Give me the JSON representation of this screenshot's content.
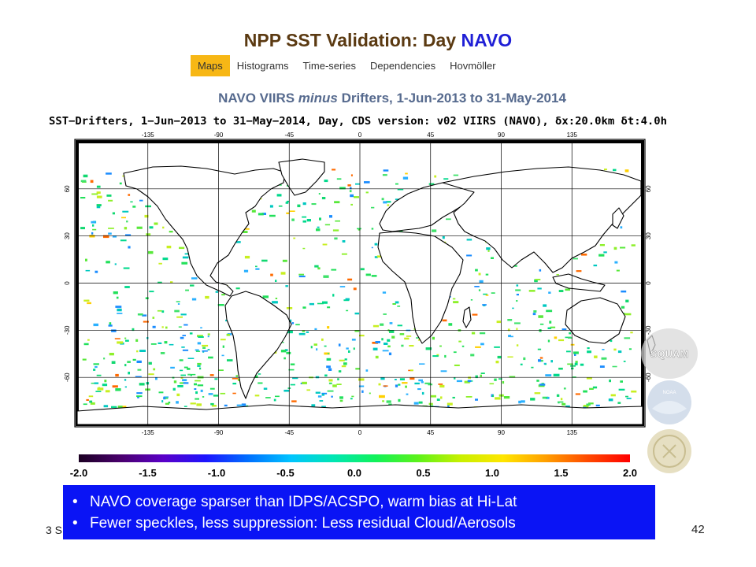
{
  "slide": {
    "title_prefix": "NPP SST Validation: Day ",
    "title_highlight": "NAVO",
    "tabs": [
      {
        "label": "Maps",
        "active": true
      },
      {
        "label": "Histograms",
        "active": false
      },
      {
        "label": "Time-series",
        "active": false
      },
      {
        "label": "Dependencies",
        "active": false
      },
      {
        "label": "Hovmöller",
        "active": false
      }
    ],
    "subtitle_part1": "NAVO VIIRS ",
    "subtitle_italic": "minus",
    "subtitle_part2": " Drifters, 1-Jun-2013 to 31-May-2014",
    "map_header": "SST−Drifters, 1−Jun−2013 to 31−May−2014, Day, CDS version: v02 VIIRS (NAVO), δx:20.0km δt:4.0h",
    "lon_ticks": [
      "-135",
      "-90",
      "-45",
      "0",
      "45",
      "90",
      "135"
    ],
    "lat_ticks": [
      "60",
      "30",
      "0",
      "-30",
      "-60"
    ],
    "colorbar": {
      "ticks": [
        "-2.0",
        "-1.5",
        "-1.0",
        "-0.5",
        "0.0",
        "0.5",
        "1.0",
        "1.5",
        "2.0"
      ]
    },
    "notes": [
      "NAVO coverage sparser than IDPS/ACSPO, warm bias at Hi-Lat",
      "Fewer speckles, less suppression: Less residual Cloud/Aerosols"
    ],
    "footer_left": "3 S",
    "page_number": "42",
    "logos": [
      {
        "label": "SQUAM"
      },
      {
        "label": "NOAA"
      }
    ]
  }
}
